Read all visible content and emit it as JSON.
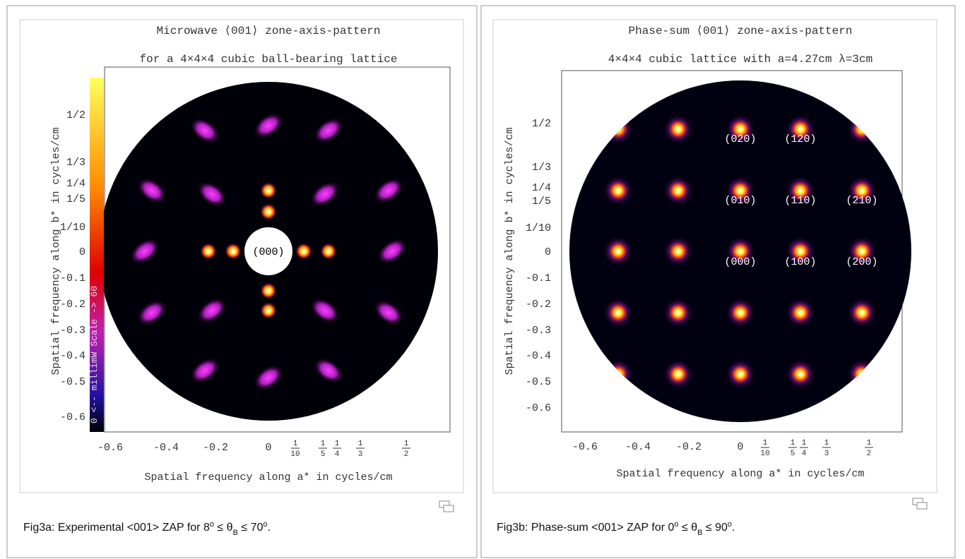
{
  "figures": [
    {
      "title": [
        "Microwave ⟨001⟩ zone-axis-pattern",
        "for a 4×4×4 cubic ball-bearing lattice"
      ],
      "y_label": "Spatial frequency along b* in cycles/cm",
      "x_label": "Spatial frequency along a* in cycles/cm",
      "y_ticks": [
        "1/2",
        "1/3",
        "1/4",
        "1/5",
        "1/10",
        "0",
        "-0.1",
        "-0.2",
        "-0.3",
        "-0.4",
        "-0.5",
        "-0.6"
      ],
      "x_ticks": [
        "-0.6",
        "-0.4",
        "-0.2",
        "0"
      ],
      "x_fraction_ticks": [
        [
          "1",
          "10"
        ],
        [
          "1",
          "5"
        ],
        [
          "1",
          "4"
        ],
        [
          "1",
          "3"
        ],
        [
          "1",
          "2"
        ]
      ],
      "colorbar_label": "0 <-- millimW  Scale -> 60",
      "spot_labels": [
        "(000)"
      ],
      "caption": [
        "Fig3a: Experimental <001> ZAP for 8",
        "o",
        " ≤ θ",
        "B",
        " ≤ 70",
        "o",
        "."
      ]
    },
    {
      "title": [
        "Phase-sum ⟨001⟩ zone-axis-pattern",
        "4×4×4 cubic lattice with a=4.27cm λ=3cm"
      ],
      "y_label": "Spatial frequency along b* in cycles/cm",
      "x_label": "Spatial frequency along a* in cycles/cm",
      "y_ticks": [
        "1/2",
        "1/3",
        "1/4",
        "1/5",
        "1/10",
        "0",
        "-0.1",
        "-0.2",
        "-0.3",
        "-0.4",
        "-0.5",
        "-0.6"
      ],
      "x_ticks": [
        "-0.6",
        "-0.4",
        "-0.2",
        "0"
      ],
      "x_fraction_ticks": [
        [
          "1",
          "10"
        ],
        [
          "1",
          "5"
        ],
        [
          "1",
          "4"
        ],
        [
          "1",
          "3"
        ],
        [
          "1",
          "2"
        ]
      ],
      "spot_labels": [
        "(020)",
        "(120)",
        "(010)",
        "(110)",
        "(210)",
        "(000)",
        "(100)",
        "(200)"
      ],
      "caption": [
        "Fig3b: Phase-sum <001> ZAP for 0",
        "o",
        " ≤ θ",
        "B",
        " ≤ 90",
        "o",
        "."
      ]
    }
  ]
}
